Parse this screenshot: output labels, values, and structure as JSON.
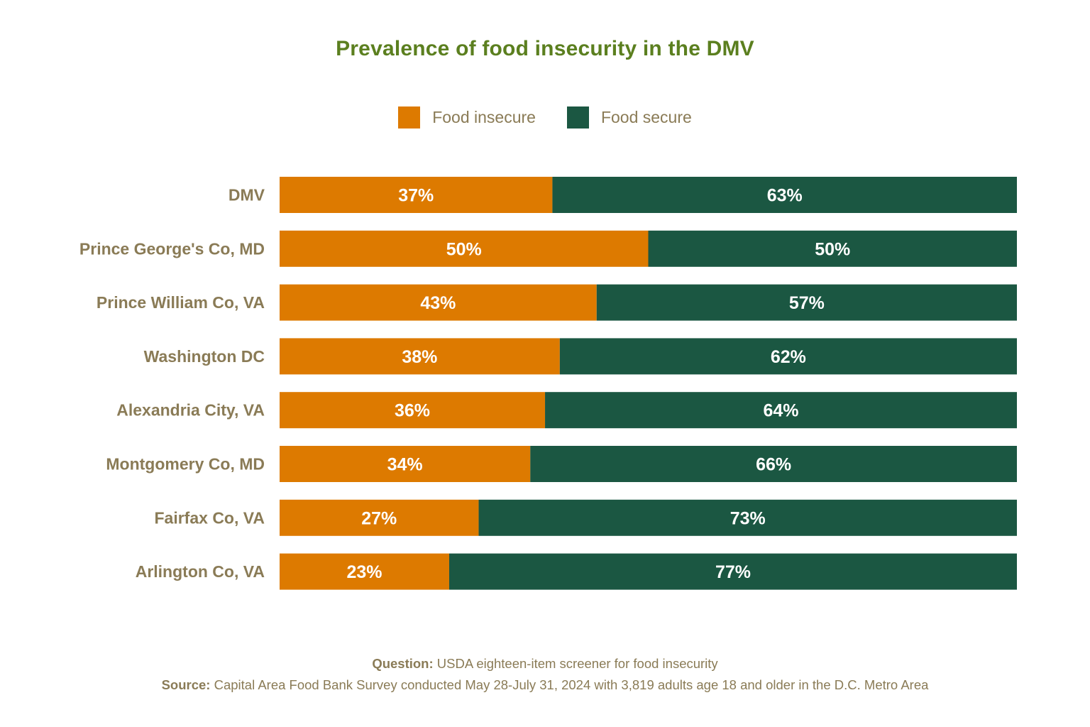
{
  "chart_data": {
    "type": "bar",
    "orientation": "horizontal",
    "stacked": true,
    "title": "Prevalence of food insecurity in the DMV",
    "categories": [
      "DMV",
      "Prince George's Co, MD",
      "Prince William Co, VA",
      "Washington DC",
      "Alexandria City, VA",
      "Montgomery Co, MD",
      "Fairfax Co, VA",
      "Arlington Co, VA"
    ],
    "series": [
      {
        "name": "Food insecure",
        "color": "#dd7a00",
        "values": [
          37,
          50,
          43,
          38,
          36,
          34,
          27,
          23
        ],
        "labels": [
          "37%",
          "50%",
          "43%",
          "38%",
          "36%",
          "34%",
          "27%",
          "23%"
        ]
      },
      {
        "name": "Food secure",
        "color": "#1b5742",
        "values": [
          63,
          50,
          57,
          62,
          64,
          66,
          73,
          77
        ],
        "labels": [
          "63%",
          "50%",
          "57%",
          "62%",
          "64%",
          "66%",
          "73%",
          "77%"
        ]
      }
    ],
    "xlim": [
      0,
      100
    ],
    "grid": false,
    "legend": "top-center"
  },
  "footer": {
    "question_label": "Question:",
    "question_text": " USDA eighteen-item screener for food insecurity",
    "source_label": "Source:",
    "source_text": " Capital Area Food Bank Survey conducted May 28-July 31, 2024 with 3,819 adults age 18 and older in the D.C. Metro Area"
  },
  "colors": {
    "title": "#5b7f1f",
    "text": "#8a7b56",
    "bar_label": "#ffffff"
  }
}
